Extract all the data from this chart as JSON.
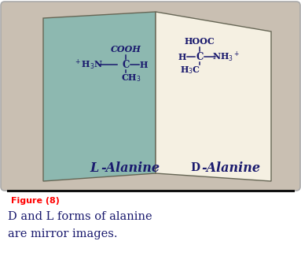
{
  "bg_color": "#c9bfb2",
  "left_panel_color": "#8db8b0",
  "right_panel_color": "#f5f0e2",
  "panel_edge_color": "#666655",
  "text_color": "#1a1a6e",
  "figure_label": "Figure (8)",
  "figure_label_color": "#ff0000",
  "caption_line1": "D and L forms of alanine",
  "caption_line2": "are mirror images.",
  "caption_color": "#1a1a6e",
  "separator_color": "#111111",
  "left_label": "L-Alanine",
  "right_label": "D-Alanine"
}
